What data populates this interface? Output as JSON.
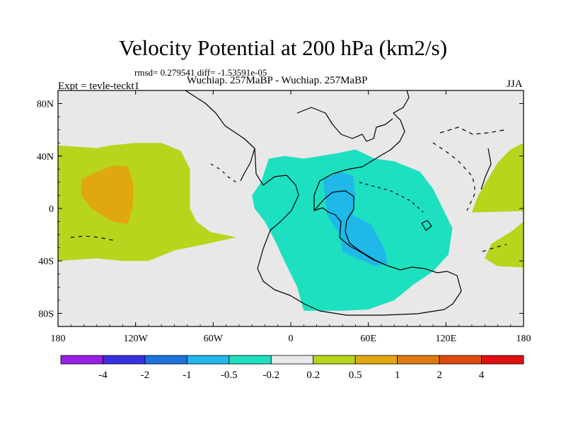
{
  "header": {
    "title": "Velocity Potential at 200 hPa (km2/s)",
    "stats": "rmsd= 0.279541 diff= -1.53591e-05",
    "subtitle": "Wuchiap. 257MaBP - Wuchiap. 257MaBP",
    "experiment": "Expt = tevle-teckt1",
    "season": "JJA"
  },
  "chart_data": {
    "type": "heatmap",
    "title": "Velocity Potential at 200 hPa (km2/s)",
    "projection": "cylindrical-equidistant",
    "xlim": [
      -180,
      180
    ],
    "ylim": [
      -90,
      90
    ],
    "x_ticks": [
      {
        "lon": -180,
        "label": "180"
      },
      {
        "lon": -120,
        "label": "120W"
      },
      {
        "lon": -60,
        "label": "60W"
      },
      {
        "lon": 0,
        "label": "0"
      },
      {
        "lon": 60,
        "label": "60E"
      },
      {
        "lon": 120,
        "label": "120E"
      },
      {
        "lon": 180,
        "label": "180"
      }
    ],
    "y_ticks": [
      {
        "lat": 80,
        "label": "80N"
      },
      {
        "lat": 40,
        "label": "40N"
      },
      {
        "lat": 0,
        "label": "0"
      },
      {
        "lat": -40,
        "label": "40S"
      },
      {
        "lat": -80,
        "label": "80S"
      }
    ],
    "colorbar": {
      "boundaries": [
        -4,
        -2,
        -1,
        -0.5,
        -0.2,
        0.2,
        0.5,
        1,
        2,
        4
      ],
      "labels": [
        "-4",
        "-2",
        "-1",
        "-0.5",
        "-0.2",
        "0.2",
        "0.5",
        "1",
        "2",
        "4"
      ],
      "colors": [
        "#9a1ee6",
        "#3a2fe0",
        "#1a73d9",
        "#1fb8e8",
        "#1de0c0",
        "#e8e8e8",
        "#b8d41c",
        "#e0a80e",
        "#e07a10",
        "#e04a10",
        "#e01010"
      ]
    },
    "regions": [
      {
        "name": "pacific-positive",
        "range": "0.2 to 0.5",
        "color": "#b8d41c",
        "lonlat": [
          [
            -180,
            48
          ],
          [
            -150,
            46
          ],
          [
            -140,
            48
          ],
          [
            -120,
            50
          ],
          [
            -100,
            50
          ],
          [
            -85,
            44
          ],
          [
            -78,
            30
          ],
          [
            -78,
            15
          ],
          [
            -78,
            0
          ],
          [
            -73,
            -10
          ],
          [
            -62,
            -18
          ],
          [
            -42,
            -22
          ],
          [
            -70,
            -28
          ],
          [
            -90,
            -32
          ],
          [
            -110,
            -40
          ],
          [
            -130,
            -40
          ],
          [
            -150,
            -38
          ],
          [
            -180,
            -40
          ]
        ]
      },
      {
        "name": "pacific-positive-core",
        "range": "0.5 to 1",
        "color": "#e0a80e",
        "lonlat": [
          [
            -162,
            22
          ],
          [
            -150,
            28
          ],
          [
            -136,
            33
          ],
          [
            -126,
            32
          ],
          [
            -122,
            20
          ],
          [
            -122,
            3
          ],
          [
            -126,
            -12
          ],
          [
            -138,
            -10
          ],
          [
            -154,
            0
          ],
          [
            -162,
            10
          ]
        ]
      },
      {
        "name": "eastern-hemisphere-negative",
        "range": "-0.5 to -0.2",
        "color": "#1de0c0",
        "lonlat": [
          [
            -23,
            20
          ],
          [
            -17,
            38
          ],
          [
            -5,
            40
          ],
          [
            10,
            38
          ],
          [
            35,
            42
          ],
          [
            50,
            45
          ],
          [
            65,
            38
          ],
          [
            80,
            36
          ],
          [
            100,
            28
          ],
          [
            110,
            15
          ],
          [
            120,
            -5
          ],
          [
            125,
            -15
          ],
          [
            122,
            -35
          ],
          [
            110,
            -48
          ],
          [
            95,
            -58
          ],
          [
            80,
            -70
          ],
          [
            60,
            -77
          ],
          [
            40,
            -78
          ],
          [
            10,
            -78
          ],
          [
            5,
            -60
          ],
          [
            -5,
            -40
          ],
          [
            -12,
            -25
          ],
          [
            -20,
            -10
          ],
          [
            -28,
            0
          ],
          [
            -30,
            10
          ]
        ]
      },
      {
        "name": "eastern-hemisphere-negative-core",
        "range": "-1 to -0.5",
        "color": "#1fb8e8",
        "lonlat": [
          [
            25,
            22
          ],
          [
            38,
            28
          ],
          [
            48,
            25
          ],
          [
            50,
            10
          ],
          [
            48,
            -5
          ],
          [
            62,
            -12
          ],
          [
            72,
            -30
          ],
          [
            75,
            -42
          ],
          [
            65,
            -44
          ],
          [
            40,
            -33
          ],
          [
            38,
            -20
          ],
          [
            28,
            -5
          ]
        ]
      },
      {
        "name": "west-pacific-positive",
        "range": "0.2 to 0.5",
        "color": "#b8d41c",
        "lonlat": [
          [
            180,
            50
          ],
          [
            180,
            -2
          ],
          [
            140,
            -3
          ],
          [
            145,
            10
          ],
          [
            160,
            35
          ],
          [
            170,
            45
          ]
        ]
      },
      {
        "name": "southwest-pacific-positive",
        "range": "0.2 to 0.5",
        "color": "#b8d41c",
        "lonlat": [
          [
            180,
            -10
          ],
          [
            180,
            -45
          ],
          [
            160,
            -44
          ],
          [
            150,
            -38
          ],
          [
            155,
            -27
          ],
          [
            170,
            -18
          ]
        ]
      }
    ]
  }
}
